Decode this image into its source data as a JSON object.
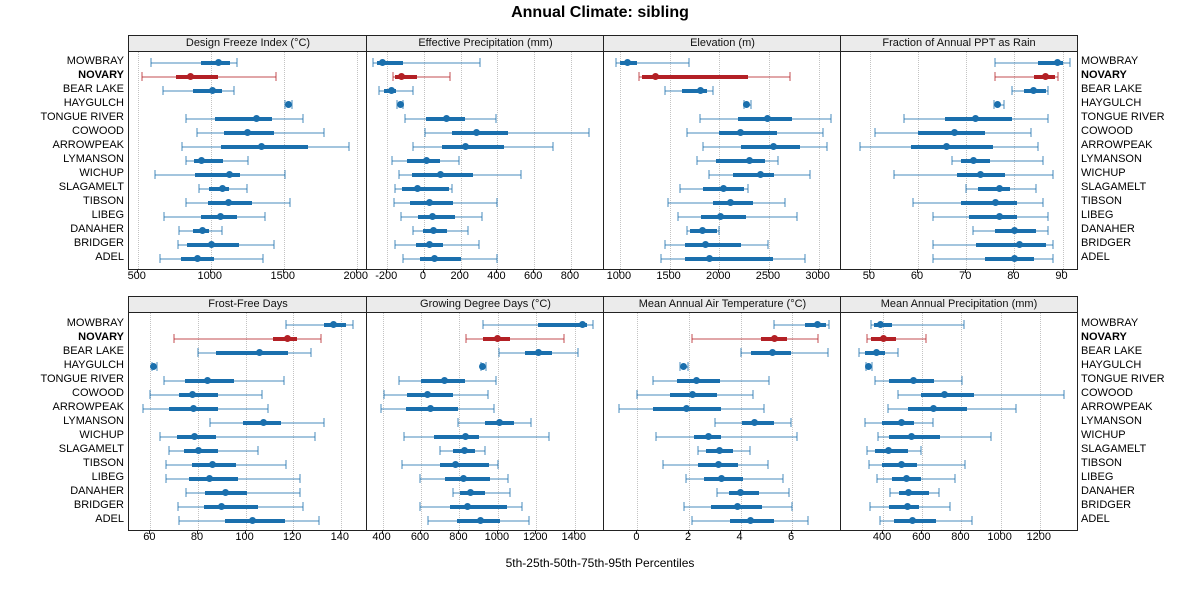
{
  "title": "Annual Climate: sibling",
  "footer": "5th-25th-50th-75th-95th Percentiles",
  "colors": {
    "blue": "#1a6fad",
    "blue_light": "rgba(26,111,173,0.40)",
    "red": "#b32025",
    "red_light": "rgba(179,32,37,0.40)",
    "grid": "#c3c3c3",
    "strip_bg": "#ebebeb",
    "border": "#222222"
  },
  "stations": [
    {
      "name": "MOWBRAY",
      "highlight": false
    },
    {
      "name": "NOVARY",
      "highlight": true
    },
    {
      "name": "BEAR LAKE",
      "highlight": false
    },
    {
      "name": "HAYGULCH",
      "highlight": false
    },
    {
      "name": "TONGUE RIVER",
      "highlight": false
    },
    {
      "name": "COWOOD",
      "highlight": false
    },
    {
      "name": "ARROWPEAK",
      "highlight": false
    },
    {
      "name": "LYMANSON",
      "highlight": false
    },
    {
      "name": "WICHUP",
      "highlight": false
    },
    {
      "name": "SLAGAMELT",
      "highlight": false
    },
    {
      "name": "TIBSON",
      "highlight": false
    },
    {
      "name": "LIBEG",
      "highlight": false
    },
    {
      "name": "DANAHER",
      "highlight": false
    },
    {
      "name": "BRIDGER",
      "highlight": false
    },
    {
      "name": "ADEL",
      "highlight": false
    }
  ],
  "chart_data": [
    {
      "type": "percentile_dotplot",
      "title": "Design Freeze Index (°C)",
      "percentiles": [
        5,
        25,
        50,
        75,
        95
      ],
      "xlim": [
        440,
        2070
      ],
      "ticks": [
        500,
        1000,
        1500,
        2000
      ],
      "values": [
        [
          590,
          930,
          1050,
          1130,
          1180
        ],
        [
          530,
          760,
          860,
          1050,
          1450
        ],
        [
          670,
          880,
          1010,
          1080,
          1160
        ],
        [
          1505,
          1520,
          1530,
          1540,
          1555
        ],
        [
          830,
          1030,
          1310,
          1420,
          1630
        ],
        [
          905,
          1090,
          1250,
          1430,
          1775
        ],
        [
          800,
          1070,
          1350,
          1665,
          1950
        ],
        [
          830,
          885,
          935,
          1085,
          1255
        ],
        [
          620,
          890,
          1130,
          1200,
          1510
        ],
        [
          920,
          990,
          1080,
          1125,
          1250
        ],
        [
          830,
          980,
          1120,
          1285,
          1540
        ],
        [
          680,
          930,
          1070,
          1180,
          1370
        ],
        [
          785,
          875,
          945,
          990,
          1075
        ],
        [
          775,
          840,
          1005,
          1195,
          1430
        ],
        [
          655,
          795,
          910,
          1025,
          1360
        ]
      ]
    },
    {
      "type": "percentile_dotplot",
      "title": "Effective Precipitation (mm)",
      "percentiles": [
        5,
        25,
        50,
        75,
        95
      ],
      "xlim": [
        -310,
        980
      ],
      "ticks": [
        -200,
        0,
        200,
        400,
        600,
        800
      ],
      "values": [
        [
          -280,
          -255,
          -225,
          -115,
          305
        ],
        [
          -170,
          -155,
          -120,
          -40,
          140
        ],
        [
          -245,
          -215,
          -175,
          -150,
          -60
        ],
        [
          -145,
          -135,
          -130,
          -125,
          -115
        ],
        [
          -105,
          10,
          120,
          225,
          390
        ],
        [
          5,
          150,
          285,
          455,
          900
        ],
        [
          -60,
          100,
          225,
          435,
          700
        ],
        [
          -175,
          -95,
          15,
          90,
          190
        ],
        [
          -135,
          -65,
          90,
          265,
          530
        ],
        [
          -160,
          -120,
          -35,
          135,
          150
        ],
        [
          -165,
          -75,
          30,
          160,
          395
        ],
        [
          -125,
          -35,
          45,
          170,
          315
        ],
        [
          -60,
          -5,
          50,
          125,
          240
        ],
        [
          -155,
          -45,
          30,
          105,
          300
        ],
        [
          -115,
          -20,
          60,
          200,
          395
        ]
      ]
    },
    {
      "type": "percentile_dotplot",
      "title": "Elevation (m)",
      "percentiles": [
        5,
        25,
        50,
        75,
        95
      ],
      "xlim": [
        840,
        3225
      ],
      "ticks": [
        1000,
        1500,
        2000,
        2500,
        3000
      ],
      "values": [
        [
          965,
          1000,
          1080,
          1170,
          1700
        ],
        [
          1195,
          1225,
          1355,
          2290,
          2715
        ],
        [
          1450,
          1620,
          1810,
          1880,
          1940
        ],
        [
          2245,
          2260,
          2275,
          2290,
          2315
        ],
        [
          1810,
          2190,
          2490,
          2735,
          3125
        ],
        [
          1680,
          2000,
          2215,
          2585,
          3045
        ],
        [
          1840,
          2215,
          2550,
          2810,
          3080
        ],
        [
          1775,
          1965,
          2305,
          2465,
          2595
        ],
        [
          1900,
          2140,
          2410,
          2555,
          2915
        ],
        [
          1605,
          1840,
          2045,
          2250,
          2290
        ],
        [
          1480,
          1940,
          2110,
          2335,
          2660
        ],
        [
          1580,
          1820,
          2015,
          2265,
          2780
        ],
        [
          1675,
          1710,
          1830,
          1975,
          2000
        ],
        [
          1455,
          1660,
          1865,
          2220,
          2495
        ],
        [
          1410,
          1660,
          1900,
          2540,
          2865
        ]
      ]
    },
    {
      "type": "percentile_dotplot",
      "title": "Fraction of Annual PPT as Rain",
      "percentiles": [
        5,
        25,
        50,
        75,
        95
      ],
      "xlim": [
        44,
        93
      ],
      "ticks": [
        50,
        60,
        70,
        80,
        90
      ],
      "values": [
        [
          76,
          85,
          89,
          90,
          91.5
        ],
        [
          76,
          84,
          86.5,
          88.5,
          89
        ],
        [
          79.5,
          82,
          84,
          86.5,
          87
        ],
        [
          75.8,
          76.1,
          76.4,
          76.8,
          77.9
        ],
        [
          57,
          65.5,
          72,
          79.5,
          87
        ],
        [
          51,
          60,
          67.5,
          74,
          83.5
        ],
        [
          48,
          58.5,
          66,
          75.5,
          85
        ],
        [
          67,
          69,
          71.5,
          75,
          86
        ],
        [
          55,
          68,
          73,
          78,
          88
        ],
        [
          70,
          72.5,
          77,
          79,
          84.5
        ],
        [
          59,
          69,
          76,
          80.5,
          86
        ],
        [
          63,
          70.5,
          77,
          80.5,
          87
        ],
        [
          71.5,
          76,
          80,
          84.5,
          87
        ],
        [
          63,
          72,
          81,
          86.5,
          88
        ],
        [
          63,
          74,
          80,
          84,
          88
        ]
      ]
    },
    {
      "type": "percentile_dotplot",
      "title": "Frost-Free Days",
      "percentiles": [
        5,
        25,
        50,
        75,
        95
      ],
      "xlim": [
        51,
        151
      ],
      "ticks": [
        60,
        80,
        100,
        120,
        140
      ],
      "values": [
        [
          117,
          133,
          137,
          142,
          145
        ],
        [
          70,
          111.5,
          117.5,
          121.5,
          131.5
        ],
        [
          80,
          87.5,
          106,
          118,
          127.5
        ],
        [
          60.8,
          61.2,
          61.5,
          62,
          62.8
        ],
        [
          65.5,
          74.5,
          84,
          95,
          116
        ],
        [
          60,
          72,
          77.5,
          88.5,
          107
        ],
        [
          57,
          68,
          78,
          88.5,
          109.5
        ],
        [
          85,
          99,
          107.5,
          115,
          133
        ],
        [
          64,
          71,
          78.5,
          87.5,
          129
        ],
        [
          68,
          74,
          80,
          88.5,
          105
        ],
        [
          66.5,
          77.5,
          86,
          96,
          117
        ],
        [
          66.5,
          76,
          85,
          97,
          123
        ],
        [
          75,
          83,
          91.5,
          100.5,
          123
        ],
        [
          71.5,
          82.5,
          90,
          105,
          124
        ],
        [
          72,
          91.5,
          103,
          116.5,
          131
        ]
      ]
    },
    {
      "type": "percentile_dotplot",
      "title": "Growing Degree Days (°C)",
      "percentiles": [
        5,
        25,
        50,
        75,
        95
      ],
      "xlim": [
        319,
        1552
      ],
      "ticks": [
        400,
        600,
        800,
        1000,
        1200,
        1400
      ],
      "values": [
        [
          925,
          1210,
          1440,
          1465,
          1495
        ],
        [
          835,
          925,
          1000,
          1065,
          1345
        ],
        [
          1005,
          1140,
          1210,
          1280,
          1415
        ],
        [
          910,
          916,
          920,
          926,
          940
        ],
        [
          485,
          600,
          720,
          830,
          990
        ],
        [
          410,
          525,
          635,
          765,
          950
        ],
        [
          390,
          520,
          650,
          795,
          980
        ],
        [
          795,
          935,
          1010,
          1085,
          1170
        ],
        [
          510,
          665,
          830,
          900,
          1265
        ],
        [
          700,
          765,
          825,
          880,
          935
        ],
        [
          500,
          700,
          780,
          955,
          1000
        ],
        [
          595,
          725,
          820,
          960,
          1050
        ],
        [
          765,
          805,
          860,
          935,
          1065
        ],
        [
          595,
          750,
          840,
          1045,
          1125
        ],
        [
          635,
          785,
          910,
          1010,
          1160
        ]
      ]
    },
    {
      "type": "percentile_dotplot",
      "title": "Mean Annual Air Temperature (°C)",
      "percentiles": [
        5,
        25,
        50,
        75,
        95
      ],
      "xlim": [
        -1.3,
        7.9
      ],
      "ticks": [
        0,
        2,
        4,
        6
      ],
      "values": [
        [
          5.3,
          6.5,
          7.0,
          7.3,
          7.45
        ],
        [
          2.1,
          4.8,
          5.3,
          5.8,
          7.0
        ],
        [
          4.0,
          4.4,
          5.25,
          5.95,
          7.4
        ],
        [
          1.65,
          1.73,
          1.79,
          1.86,
          1.95
        ],
        [
          0.6,
          1.55,
          2.3,
          3.2,
          5.1
        ],
        [
          0.0,
          1.25,
          2.15,
          3.1,
          4.5
        ],
        [
          -0.7,
          0.6,
          1.9,
          3.25,
          4.9
        ],
        [
          3.0,
          4.05,
          4.55,
          5.3,
          5.95
        ],
        [
          0.7,
          2.2,
          2.75,
          3.25,
          6.2
        ],
        [
          2.35,
          2.65,
          3.2,
          3.7,
          4.35
        ],
        [
          1.0,
          2.35,
          3.15,
          3.9,
          5.05
        ],
        [
          1.9,
          2.6,
          3.25,
          4.1,
          5.65
        ],
        [
          3.1,
          3.55,
          4.0,
          4.7,
          5.9
        ],
        [
          1.8,
          2.85,
          3.9,
          4.85,
          6.0
        ],
        [
          2.1,
          3.6,
          4.4,
          5.3,
          6.6
        ]
      ]
    },
    {
      "type": "percentile_dotplot",
      "title": "Mean Annual Precipitation (mm)",
      "percentiles": [
        5,
        25,
        50,
        75,
        95
      ],
      "xlim": [
        185,
        1390
      ],
      "ticks": [
        400,
        600,
        800,
        1000,
        1200
      ],
      "values": [
        [
          340,
          355,
          385,
          445,
          815
        ],
        [
          320,
          340,
          400,
          465,
          620
        ],
        [
          275,
          310,
          365,
          410,
          475
        ],
        [
          315,
          320,
          325,
          332,
          342
        ],
        [
          360,
          430,
          555,
          660,
          805
        ],
        [
          475,
          595,
          715,
          865,
          1325
        ],
        [
          425,
          525,
          655,
          830,
          1080
        ],
        [
          305,
          395,
          495,
          560,
          655
        ],
        [
          375,
          430,
          545,
          690,
          950
        ],
        [
          320,
          360,
          430,
          525,
          595
        ],
        [
          330,
          395,
          495,
          575,
          820
        ],
        [
          370,
          445,
          520,
          595,
          765
        ],
        [
          435,
          480,
          530,
          635,
          685
        ],
        [
          335,
          430,
          525,
          585,
          740
        ],
        [
          385,
          455,
          550,
          670,
          855
        ]
      ]
    }
  ]
}
